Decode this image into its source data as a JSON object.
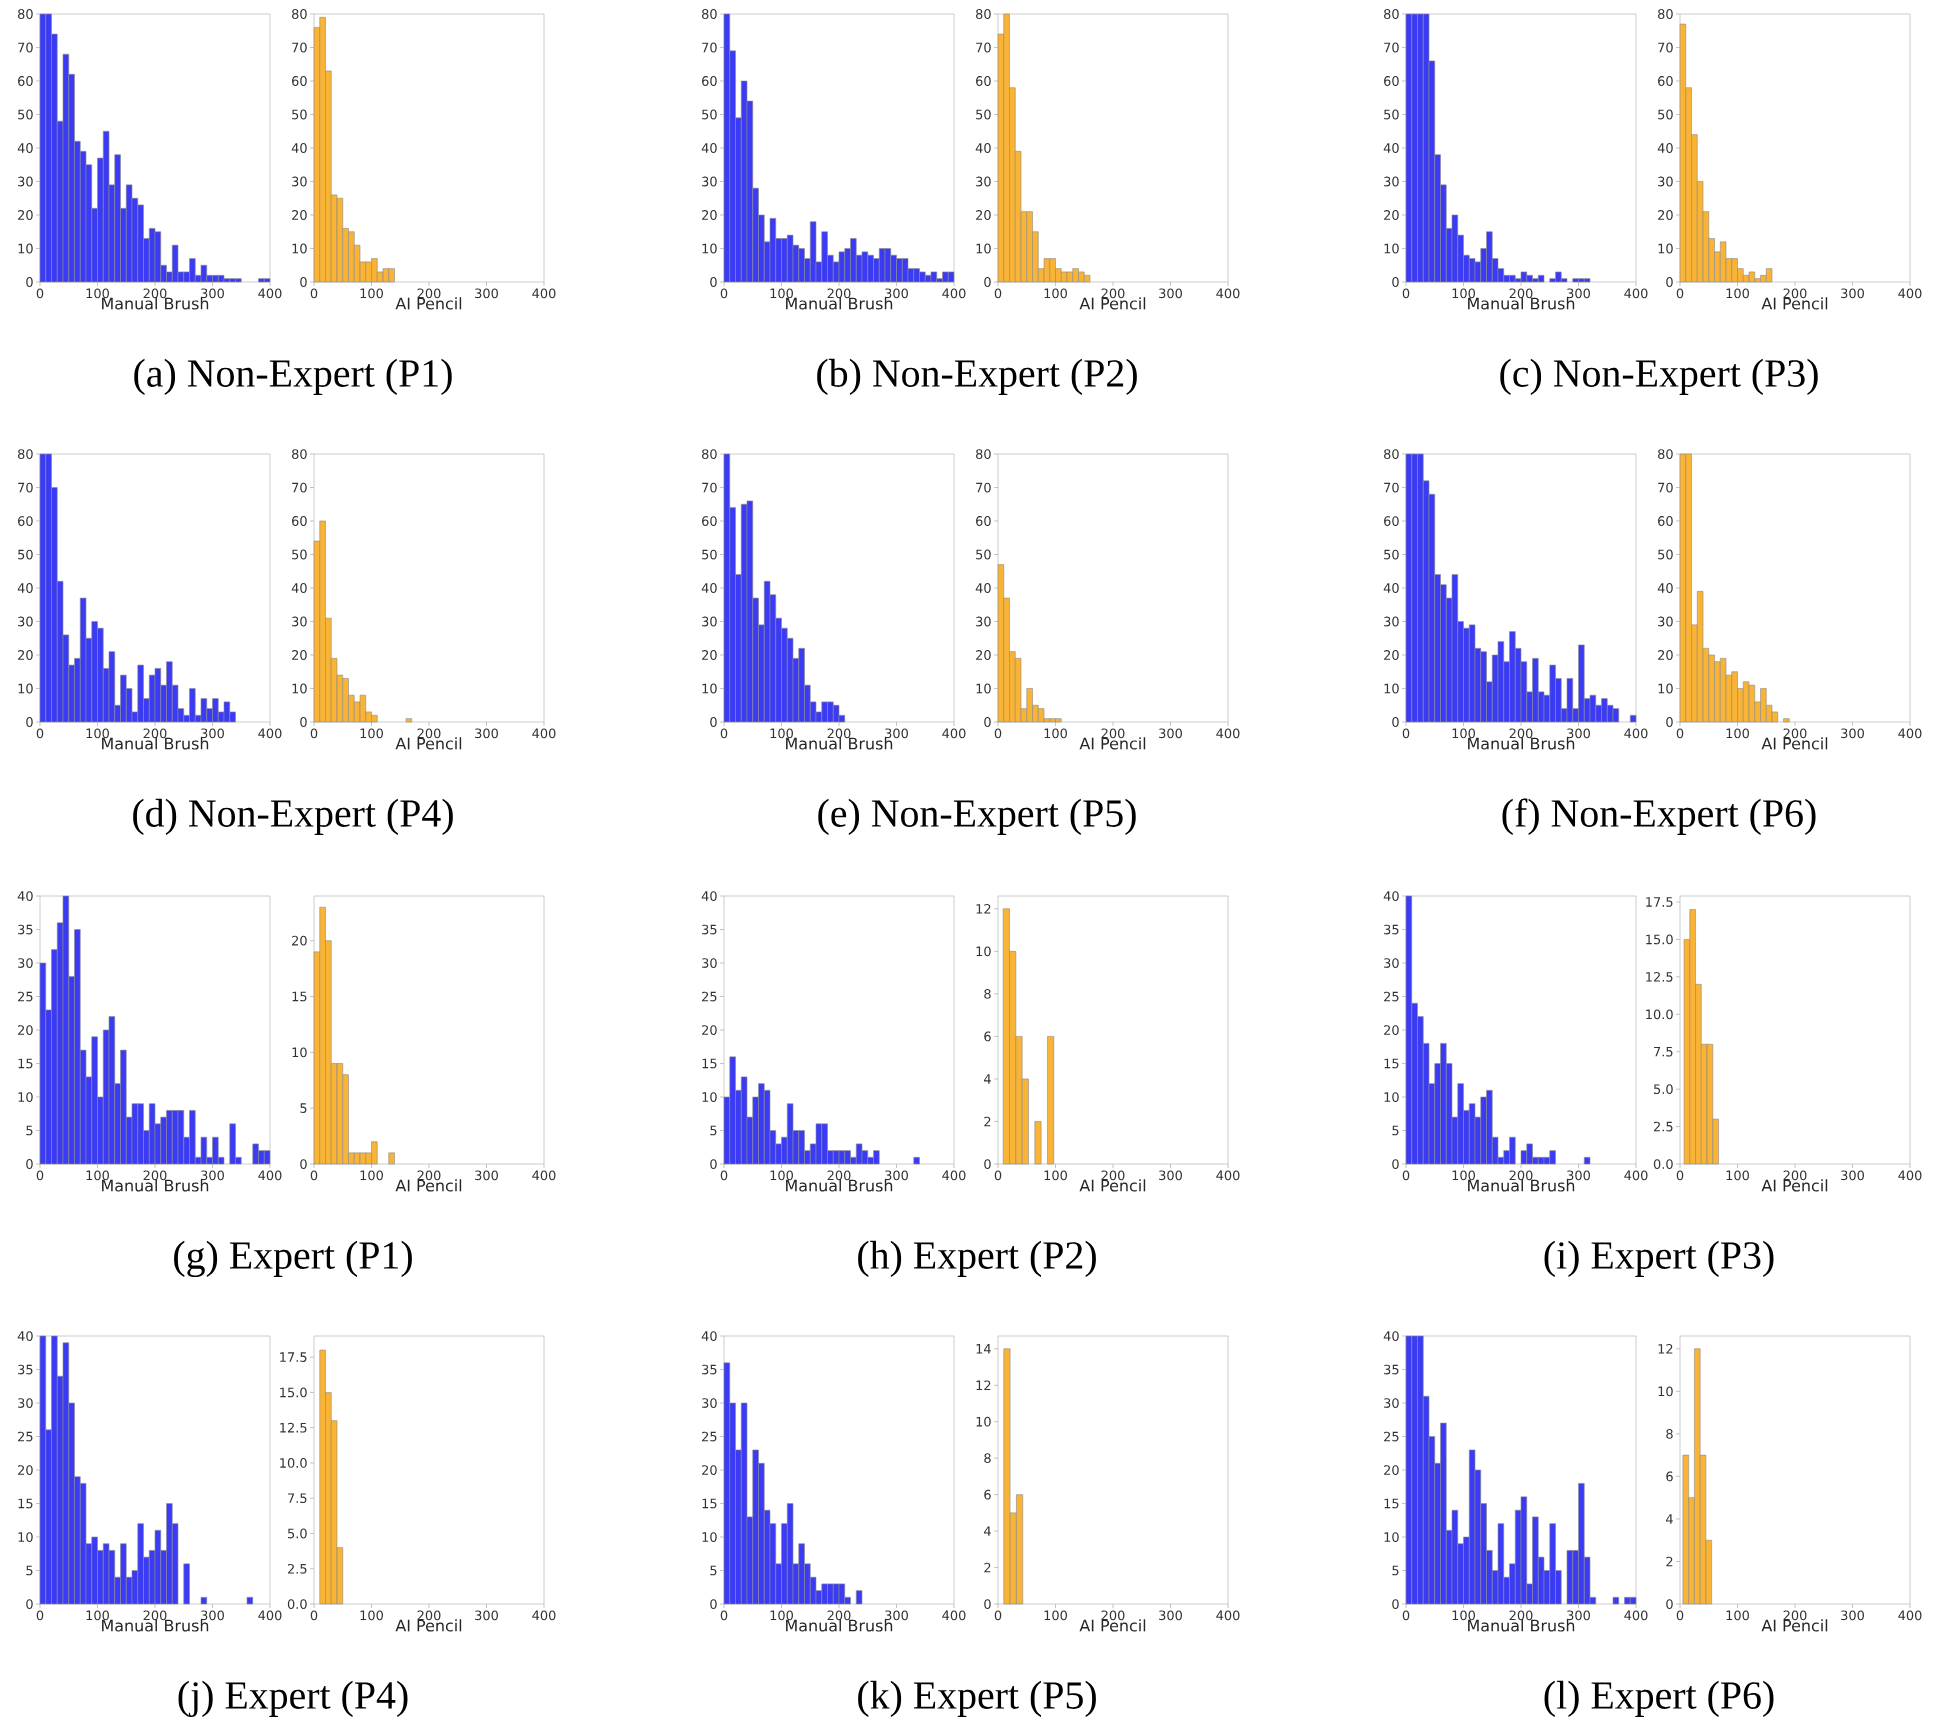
{
  "chart_data": [
    {
      "type": "histogram",
      "xlabel": "Manual Brush",
      "color": "#3b3bf5",
      "annotations": [
        "(a) Non-Expert (P1)"
      ],
      "xlim": [
        0,
        400
      ],
      "xticks": [
        0,
        100,
        200,
        300,
        400
      ],
      "ylim": [
        0,
        80
      ],
      "yticks": [
        0,
        10,
        20,
        30,
        40,
        50,
        60,
        70,
        80
      ],
      "bins": [
        0,
        10,
        20,
        30,
        40,
        50,
        60,
        70,
        80,
        90,
        100,
        110,
        120,
        130,
        140,
        150,
        160,
        170,
        180,
        190,
        200,
        210,
        220,
        230,
        240,
        250,
        260,
        270,
        280,
        290,
        300,
        310,
        320,
        330,
        340,
        350,
        360,
        370,
        380,
        390,
        400
      ],
      "values": [
        80,
        80,
        74,
        48,
        68,
        62,
        42,
        39,
        35,
        22,
        37,
        45,
        29,
        38,
        22,
        29,
        25,
        23,
        13,
        16,
        15,
        5,
        3,
        11,
        3,
        3,
        7,
        2,
        5,
        2,
        2,
        2,
        1,
        1,
        1,
        0,
        0,
        0,
        1,
        1
      ]
    },
    {
      "type": "histogram",
      "xlabel": "AI Pencil",
      "color": "#f9b335",
      "xlim": [
        0,
        400
      ],
      "xticks": [
        0,
        100,
        200,
        300,
        400
      ],
      "ylim": [
        0,
        80
      ],
      "yticks": [
        0,
        10,
        20,
        30,
        40,
        50,
        60,
        70,
        80
      ],
      "bins": [
        0,
        10,
        20,
        30,
        40,
        50,
        60,
        70,
        80,
        90,
        100,
        110,
        120,
        130,
        140
      ],
      "values": [
        76,
        79,
        63,
        26,
        25,
        16,
        15,
        11,
        6,
        6,
        7,
        3,
        4,
        4
      ]
    },
    {
      "type": "histogram",
      "xlabel": "Manual Brush",
      "color": "#3b3bf5",
      "annotations": [
        "(b) Non-Expert (P2)"
      ],
      "xlim": [
        0,
        400
      ],
      "xticks": [
        0,
        100,
        200,
        300,
        400
      ],
      "ylim": [
        0,
        80
      ],
      "yticks": [
        0,
        10,
        20,
        30,
        40,
        50,
        60,
        70,
        80
      ],
      "bins": [
        0,
        10,
        20,
        30,
        40,
        50,
        60,
        70,
        80,
        90,
        100,
        110,
        120,
        130,
        140,
        150,
        160,
        170,
        180,
        190,
        200,
        210,
        220,
        230,
        240,
        250,
        260,
        270,
        280,
        290,
        300,
        310,
        320,
        330,
        340,
        350,
        360,
        370,
        380,
        390,
        400
      ],
      "values": [
        80,
        69,
        49,
        60,
        54,
        28,
        20,
        12,
        19,
        13,
        13,
        14,
        11,
        10,
        7,
        18,
        6,
        15,
        8,
        6,
        9,
        10,
        13,
        8,
        9,
        8,
        7,
        10,
        10,
        8,
        7,
        7,
        4,
        4,
        3,
        2,
        3,
        1,
        3,
        3
      ]
    },
    {
      "type": "histogram",
      "xlabel": "AI Pencil",
      "color": "#f9b335",
      "xlim": [
        0,
        400
      ],
      "xticks": [
        0,
        100,
        200,
        300,
        400
      ],
      "ylim": [
        0,
        80
      ],
      "yticks": [
        0,
        10,
        20,
        30,
        40,
        50,
        60,
        70,
        80
      ],
      "bins": [
        0,
        10,
        20,
        30,
        40,
        50,
        60,
        70,
        80,
        90,
        100,
        110,
        120,
        130,
        140,
        150,
        160
      ],
      "values": [
        74,
        80,
        58,
        39,
        21,
        21,
        15,
        4,
        7,
        7,
        4,
        3,
        3,
        4,
        3,
        2
      ]
    },
    {
      "type": "histogram",
      "xlabel": "Manual Brush",
      "color": "#3b3bf5",
      "annotations": [
        "(c) Non-Expert (P3)"
      ],
      "xlim": [
        0,
        400
      ],
      "xticks": [
        0,
        100,
        200,
        300,
        400
      ],
      "ylim": [
        0,
        80
      ],
      "yticks": [
        0,
        10,
        20,
        30,
        40,
        50,
        60,
        70,
        80
      ],
      "bins": [
        0,
        10,
        20,
        30,
        40,
        50,
        60,
        70,
        80,
        90,
        100,
        110,
        120,
        130,
        140,
        150,
        160,
        170,
        180,
        190,
        200,
        210,
        220,
        230,
        240,
        250,
        260,
        270,
        280,
        290,
        300,
        310,
        320
      ],
      "values": [
        80,
        80,
        80,
        80,
        66,
        38,
        29,
        16,
        20,
        14,
        8,
        7,
        6,
        10,
        15,
        7,
        4,
        2,
        2,
        1,
        3,
        2,
        1,
        2,
        0,
        1,
        3,
        1,
        0,
        1,
        1,
        1
      ]
    },
    {
      "type": "histogram",
      "xlabel": "AI Pencil",
      "color": "#f9b335",
      "xlim": [
        0,
        400
      ],
      "xticks": [
        0,
        100,
        200,
        300,
        400
      ],
      "ylim": [
        0,
        80
      ],
      "yticks": [
        0,
        10,
        20,
        30,
        40,
        50,
        60,
        70,
        80
      ],
      "bins": [
        0,
        10,
        20,
        30,
        40,
        50,
        60,
        70,
        80,
        90,
        100,
        110,
        120,
        130,
        140,
        150,
        160
      ],
      "values": [
        77,
        58,
        44,
        30,
        21,
        13,
        9,
        12,
        7,
        7,
        4,
        2,
        3,
        1,
        2,
        4
      ]
    },
    {
      "type": "histogram",
      "xlabel": "Manual Brush",
      "color": "#3b3bf5",
      "annotations": [
        "(d) Non-Expert (P4)"
      ],
      "xlim": [
        0,
        400
      ],
      "xticks": [
        0,
        100,
        200,
        300,
        400
      ],
      "ylim": [
        0,
        80
      ],
      "yticks": [
        0,
        10,
        20,
        30,
        40,
        50,
        60,
        70,
        80
      ],
      "bins": [
        0,
        10,
        20,
        30,
        40,
        50,
        60,
        70,
        80,
        90,
        100,
        110,
        120,
        130,
        140,
        150,
        160,
        170,
        180,
        190,
        200,
        210,
        220,
        230,
        240,
        250,
        260,
        270,
        280,
        290,
        300,
        310,
        320,
        330,
        340
      ],
      "values": [
        80,
        80,
        70,
        42,
        26,
        17,
        19,
        37,
        25,
        30,
        28,
        16,
        21,
        5,
        14,
        10,
        3,
        17,
        7,
        14,
        16,
        11,
        18,
        11,
        4,
        2,
        10,
        2,
        7,
        4,
        7,
        3,
        6,
        3
      ]
    },
    {
      "type": "histogram",
      "xlabel": "AI Pencil",
      "color": "#f9b335",
      "xlim": [
        0,
        400
      ],
      "xticks": [
        0,
        100,
        200,
        300,
        400
      ],
      "ylim": [
        0,
        80
      ],
      "yticks": [
        0,
        10,
        20,
        30,
        40,
        50,
        60,
        70,
        80
      ],
      "bins": [
        0,
        10,
        20,
        30,
        40,
        50,
        60,
        70,
        80,
        90,
        100,
        110,
        120,
        130,
        140,
        150,
        160,
        170
      ],
      "values": [
        54,
        60,
        31,
        19,
        14,
        13,
        8,
        6,
        8,
        3,
        2,
        0,
        0,
        0,
        0,
        0,
        1
      ]
    },
    {
      "type": "histogram",
      "xlabel": "Manual Brush",
      "color": "#3b3bf5",
      "annotations": [
        "(e) Non-Expert (P5)"
      ],
      "xlim": [
        0,
        400
      ],
      "xticks": [
        0,
        100,
        200,
        300,
        400
      ],
      "ylim": [
        0,
        80
      ],
      "yticks": [
        0,
        10,
        20,
        30,
        40,
        50,
        60,
        70,
        80
      ],
      "bins": [
        0,
        10,
        20,
        30,
        40,
        50,
        60,
        70,
        80,
        90,
        100,
        110,
        120,
        130,
        140,
        150,
        160,
        170,
        180,
        190,
        200,
        210
      ],
      "values": [
        80,
        64,
        44,
        65,
        66,
        37,
        29,
        42,
        38,
        31,
        28,
        25,
        19,
        22,
        11,
        6,
        3,
        6,
        6,
        5,
        2
      ]
    },
    {
      "type": "histogram",
      "xlabel": "AI Pencil",
      "color": "#f9b335",
      "xlim": [
        0,
        400
      ],
      "xticks": [
        0,
        100,
        200,
        300,
        400
      ],
      "ylim": [
        0,
        80
      ],
      "yticks": [
        0,
        10,
        20,
        30,
        40,
        50,
        60,
        70,
        80
      ],
      "bins": [
        0,
        10,
        20,
        30,
        40,
        50,
        60,
        70,
        80,
        90,
        100,
        110
      ],
      "values": [
        47,
        37,
        21,
        19,
        4,
        10,
        5,
        4,
        1,
        1,
        1
      ]
    },
    {
      "type": "histogram",
      "xlabel": "Manual Brush",
      "color": "#3b3bf5",
      "annotations": [
        "(f) Non-Expert (P6)"
      ],
      "xlim": [
        0,
        400
      ],
      "xticks": [
        0,
        100,
        200,
        300,
        400
      ],
      "ylim": [
        0,
        80
      ],
      "yticks": [
        0,
        10,
        20,
        30,
        40,
        50,
        60,
        70,
        80
      ],
      "bins": [
        0,
        10,
        20,
        30,
        40,
        50,
        60,
        70,
        80,
        90,
        100,
        110,
        120,
        130,
        140,
        150,
        160,
        170,
        180,
        190,
        200,
        210,
        220,
        230,
        240,
        250,
        260,
        270,
        280,
        290,
        300,
        310,
        320,
        330,
        340,
        350,
        360,
        370,
        380,
        390,
        400
      ],
      "values": [
        80,
        80,
        80,
        72,
        68,
        44,
        41,
        37,
        44,
        30,
        28,
        29,
        22,
        21,
        12,
        20,
        24,
        18,
        27,
        22,
        18,
        9,
        19,
        9,
        8,
        17,
        13,
        4,
        13,
        4,
        23,
        7,
        8,
        5,
        7,
        5,
        4,
        0,
        0,
        2
      ]
    },
    {
      "type": "histogram",
      "xlabel": "AI Pencil",
      "color": "#f9b335",
      "xlim": [
        0,
        400
      ],
      "xticks": [
        0,
        100,
        200,
        300,
        400
      ],
      "ylim": [
        0,
        80
      ],
      "yticks": [
        0,
        10,
        20,
        30,
        40,
        50,
        60,
        70,
        80
      ],
      "bins": [
        0,
        10,
        20,
        30,
        40,
        50,
        60,
        70,
        80,
        90,
        100,
        110,
        120,
        130,
        140,
        150,
        160,
        170,
        180,
        190
      ],
      "values": [
        80,
        80,
        29,
        39,
        22,
        20,
        18,
        19,
        14,
        15,
        10,
        12,
        11,
        6,
        10,
        5,
        3,
        0,
        1
      ]
    },
    {
      "type": "histogram",
      "xlabel": "Manual Brush",
      "color": "#3b3bf5",
      "annotations": [
        "(g) Expert (P1)"
      ],
      "xlim": [
        0,
        400
      ],
      "xticks": [
        0,
        100,
        200,
        300,
        400
      ],
      "ylim": [
        0,
        40
      ],
      "yticks": [
        0,
        5,
        10,
        15,
        20,
        25,
        30,
        35,
        40
      ],
      "bins": [
        0,
        10,
        20,
        30,
        40,
        50,
        60,
        70,
        80,
        90,
        100,
        110,
        120,
        130,
        140,
        150,
        160,
        170,
        180,
        190,
        200,
        210,
        220,
        230,
        240,
        250,
        260,
        270,
        280,
        290,
        300,
        310,
        320,
        330,
        340,
        350,
        360,
        370,
        380,
        390,
        400
      ],
      "values": [
        30,
        23,
        32,
        36,
        40,
        28,
        35,
        17,
        13,
        19,
        10,
        20,
        22,
        12,
        17,
        7,
        9,
        9,
        5,
        9,
        6,
        7,
        8,
        8,
        8,
        4,
        8,
        1,
        4,
        1,
        4,
        1,
        0,
        6,
        1,
        0,
        0,
        3,
        2,
        2
      ]
    },
    {
      "type": "histogram",
      "xlabel": "AI Pencil",
      "color": "#f9b335",
      "xlim": [
        0,
        400
      ],
      "xticks": [
        0,
        100,
        200,
        300,
        400
      ],
      "ylim": [
        0,
        24
      ],
      "yticks": [
        0,
        5,
        10,
        15,
        20
      ],
      "bins": [
        0,
        10,
        20,
        30,
        40,
        50,
        60,
        70,
        80,
        90,
        100,
        110,
        120,
        130,
        140
      ],
      "values": [
        19,
        23,
        20,
        9,
        9,
        8,
        1,
        1,
        1,
        1,
        2,
        0,
        0,
        1
      ]
    },
    {
      "type": "histogram",
      "xlabel": "Manual Brush",
      "color": "#3b3bf5",
      "annotations": [
        "(h) Expert (P2)"
      ],
      "xlim": [
        0,
        400
      ],
      "xticks": [
        0,
        100,
        200,
        300,
        400
      ],
      "ylim": [
        0,
        40
      ],
      "yticks": [
        0,
        5,
        10,
        15,
        20,
        25,
        30,
        35,
        40
      ],
      "bins": [
        0,
        10,
        20,
        30,
        40,
        50,
        60,
        70,
        80,
        90,
        100,
        110,
        120,
        130,
        140,
        150,
        160,
        170,
        180,
        190,
        200,
        210,
        220,
        230,
        240,
        250,
        260,
        270,
        280,
        290,
        300,
        310,
        320,
        330,
        340
      ],
      "values": [
        10,
        16,
        11,
        13,
        7,
        10,
        12,
        11,
        5,
        3,
        4,
        9,
        5,
        5,
        2,
        3,
        6,
        6,
        2,
        2,
        2,
        2,
        1,
        3,
        2,
        1,
        2,
        0,
        0,
        0,
        0,
        0,
        0,
        1
      ]
    },
    {
      "type": "histogram",
      "xlabel": "AI Pencil",
      "color": "#f9b335",
      "xlim": [
        0,
        400
      ],
      "xticks": [
        0,
        100,
        200,
        300,
        400
      ],
      "ylim": [
        0,
        12.6
      ],
      "yticks": [
        0,
        2,
        4,
        6,
        8,
        10,
        12
      ],
      "bins": [
        9,
        20,
        31,
        42,
        53,
        64,
        75,
        86,
        97
      ],
      "values": [
        12,
        10,
        6,
        4,
        0,
        2,
        0,
        6
      ]
    },
    {
      "type": "histogram",
      "xlabel": "Manual Brush",
      "color": "#3b3bf5",
      "annotations": [
        "(i) Expert (P3)"
      ],
      "xlim": [
        0,
        400
      ],
      "xticks": [
        0,
        100,
        200,
        300,
        400
      ],
      "ylim": [
        0,
        40
      ],
      "yticks": [
        0,
        5,
        10,
        15,
        20,
        25,
        30,
        35,
        40
      ],
      "bins": [
        0,
        10,
        20,
        30,
        40,
        50,
        60,
        70,
        80,
        90,
        100,
        110,
        120,
        130,
        140,
        150,
        160,
        170,
        180,
        190,
        200,
        210,
        220,
        230,
        240,
        250,
        260,
        270,
        280,
        290,
        300,
        310,
        320
      ],
      "values": [
        40,
        24,
        22,
        18,
        12,
        15,
        18,
        15,
        7,
        12,
        8,
        9,
        7,
        10,
        11,
        4,
        1,
        2,
        4,
        0,
        2,
        3,
        1,
        1,
        1,
        2,
        0,
        0,
        0,
        0,
        0,
        1
      ]
    },
    {
      "type": "histogram",
      "xlabel": "AI Pencil",
      "color": "#f9b335",
      "xlim": [
        0,
        400
      ],
      "xticks": [
        0,
        100,
        200,
        300,
        400
      ],
      "ylim": [
        0,
        17.9
      ],
      "yticks": [
        {
          "value": 0,
          "label": "0.0"
        },
        {
          "value": 2.5,
          "label": "2.5"
        },
        {
          "value": 5,
          "label": "5.0"
        },
        {
          "value": 7.5,
          "label": "7.5"
        },
        {
          "value": 10,
          "label": "10.0"
        },
        {
          "value": 12.5,
          "label": "12.5"
        },
        {
          "value": 15,
          "label": "15.0"
        },
        {
          "value": 17.5,
          "label": "17.5"
        }
      ],
      "bins": [
        7,
        17,
        27,
        37,
        47,
        57,
        67
      ],
      "values": [
        15,
        17,
        12,
        8,
        8,
        3
      ]
    },
    {
      "type": "histogram",
      "xlabel": "Manual Brush",
      "color": "#3b3bf5",
      "annotations": [
        "(j) Expert (P4)"
      ],
      "xlim": [
        0,
        400
      ],
      "xticks": [
        0,
        100,
        200,
        300,
        400
      ],
      "ylim": [
        0,
        40
      ],
      "yticks": [
        0,
        5,
        10,
        15,
        20,
        25,
        30,
        35,
        40
      ],
      "bins": [
        0,
        10,
        20,
        30,
        40,
        50,
        60,
        70,
        80,
        90,
        100,
        110,
        120,
        130,
        140,
        150,
        160,
        170,
        180,
        190,
        200,
        210,
        220,
        230,
        240,
        250,
        260,
        270,
        280,
        290,
        300,
        310,
        320,
        330,
        340,
        350,
        360,
        370
      ],
      "values": [
        40,
        26,
        40,
        34,
        39,
        30,
        19,
        18,
        9,
        10,
        8,
        9,
        8,
        4,
        9,
        4,
        5,
        12,
        7,
        8,
        11,
        8,
        15,
        12,
        0,
        6,
        0,
        0,
        1,
        0,
        0,
        0,
        0,
        0,
        0,
        0,
        1
      ]
    },
    {
      "type": "histogram",
      "xlabel": "AI Pencil",
      "color": "#f9b335",
      "xlim": [
        0,
        400
      ],
      "xticks": [
        0,
        100,
        200,
        300,
        400
      ],
      "ylim": [
        0,
        19
      ],
      "yticks": [
        {
          "value": 0,
          "label": "0.0"
        },
        {
          "value": 2.5,
          "label": "2.5"
        },
        {
          "value": 5,
          "label": "5.0"
        },
        {
          "value": 7.5,
          "label": "7.5"
        },
        {
          "value": 10,
          "label": "10.0"
        },
        {
          "value": 12.5,
          "label": "12.5"
        },
        {
          "value": 15,
          "label": "15.0"
        },
        {
          "value": 17.5,
          "label": "17.5"
        }
      ],
      "bins": [
        10,
        20,
        30,
        40,
        50
      ],
      "values": [
        18,
        15,
        13,
        4
      ]
    },
    {
      "type": "histogram",
      "xlabel": "Manual Brush",
      "color": "#3b3bf5",
      "annotations": [
        "(k) Expert (P5)"
      ],
      "xlim": [
        0,
        400
      ],
      "xticks": [
        0,
        100,
        200,
        300,
        400
      ],
      "ylim": [
        0,
        40
      ],
      "yticks": [
        0,
        5,
        10,
        15,
        20,
        25,
        30,
        35,
        40
      ],
      "bins": [
        0,
        10,
        20,
        30,
        40,
        50,
        60,
        70,
        80,
        90,
        100,
        110,
        120,
        130,
        140,
        150,
        160,
        170,
        180,
        190,
        200,
        210,
        220,
        230,
        240
      ],
      "values": [
        36,
        30,
        23,
        30,
        13,
        23,
        21,
        14,
        12,
        6,
        12,
        15,
        6,
        9,
        6,
        4,
        2,
        3,
        3,
        3,
        3,
        1,
        0,
        2
      ]
    },
    {
      "type": "histogram",
      "xlabel": "AI Pencil",
      "color": "#f9b335",
      "xlim": [
        0,
        400
      ],
      "xticks": [
        0,
        100,
        200,
        300,
        400
      ],
      "ylim": [
        0,
        14.7
      ],
      "yticks": [
        0,
        2,
        4,
        6,
        8,
        10,
        12,
        14
      ],
      "bins": [
        10,
        21,
        32,
        43
      ],
      "values": [
        14,
        5,
        6
      ]
    },
    {
      "type": "histogram",
      "xlabel": "Manual Brush",
      "color": "#3b3bf5",
      "annotations": [
        "(l) Expert (P6)"
      ],
      "xlim": [
        0,
        400
      ],
      "xticks": [
        0,
        100,
        200,
        300,
        400
      ],
      "ylim": [
        0,
        40
      ],
      "yticks": [
        0,
        5,
        10,
        15,
        20,
        25,
        30,
        35,
        40
      ],
      "bins": [
        0,
        10,
        20,
        30,
        40,
        50,
        60,
        70,
        80,
        90,
        100,
        110,
        120,
        130,
        140,
        150,
        160,
        170,
        180,
        190,
        200,
        210,
        220,
        230,
        240,
        250,
        260,
        270,
        280,
        290,
        300,
        310,
        320,
        330,
        340,
        350,
        360,
        370,
        380,
        390,
        400
      ],
      "values": [
        40,
        40,
        40,
        31,
        25,
        21,
        27,
        11,
        14,
        9,
        10,
        23,
        20,
        15,
        8,
        5,
        12,
        4,
        6,
        14,
        16,
        3,
        13,
        7,
        5,
        12,
        5,
        0,
        8,
        8,
        18,
        7,
        1,
        0,
        0,
        0,
        1,
        0,
        1,
        1
      ]
    },
    {
      "type": "histogram",
      "xlabel": "AI Pencil",
      "color": "#f9b335",
      "xlim": [
        0,
        400
      ],
      "xticks": [
        0,
        100,
        200,
        300,
        400
      ],
      "ylim": [
        0,
        12.6
      ],
      "yticks": [
        0,
        2,
        4,
        6,
        8,
        10,
        12
      ],
      "bins": [
        5,
        15,
        25,
        35,
        45,
        55
      ],
      "values": [
        7,
        5,
        12,
        7,
        3
      ]
    }
  ]
}
